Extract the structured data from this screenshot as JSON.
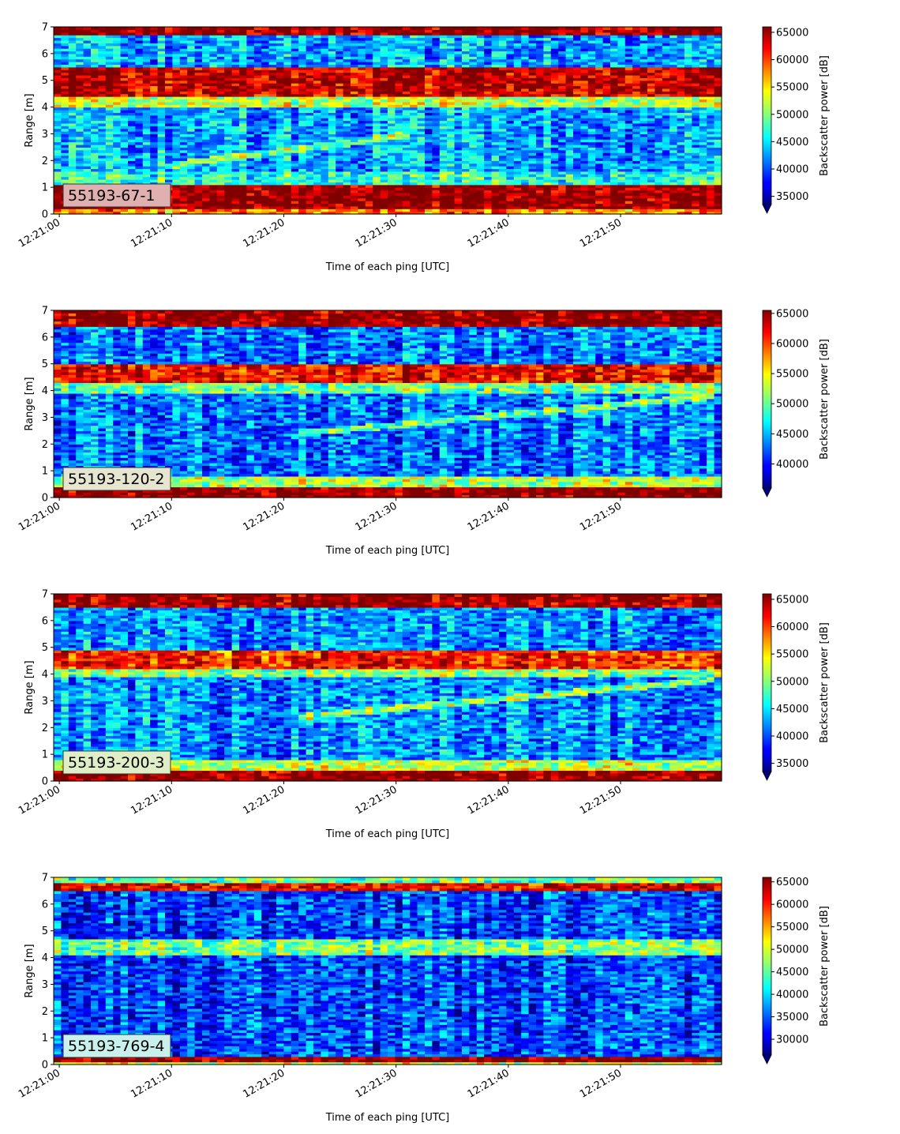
{
  "chart_data": [
    {
      "type": "heatmap",
      "label": "55193-67-1",
      "label_bg": "#e0b0b0",
      "xlabel": "Time of each ping [UTC]",
      "ylabel": "Range [m]",
      "x_ticks": [
        "12:21:00",
        "12:21:10",
        "12:21:20",
        "12:21:30",
        "12:21:40",
        "12:21:50"
      ],
      "xlim_seconds": [
        0,
        59.5
      ],
      "ylim": [
        0,
        7
      ],
      "y_ticks": [
        0,
        1,
        2,
        3,
        4,
        5,
        6,
        7
      ],
      "colormap": "jet",
      "colorbar": {
        "label": "Backscatter power [dB]",
        "range": [
          33500,
          66000
        ],
        "ticks": [
          35000,
          40000,
          45000,
          50000,
          55000,
          60000,
          65000
        ],
        "extend": "min"
      },
      "bands": [
        {
          "y_range": [
            0.0,
            0.2
          ],
          "value": 58000
        },
        {
          "y_range": [
            0.2,
            1.1
          ],
          "value": 66000
        },
        {
          "y_range": [
            1.1,
            1.6
          ],
          "value": 47000
        },
        {
          "y_range": [
            4.0,
            4.4
          ],
          "value": 52000
        },
        {
          "y_range": [
            4.4,
            5.5
          ],
          "value": 64000
        },
        {
          "y_range": [
            6.7,
            7.0
          ],
          "value": 66000
        }
      ],
      "trace": {
        "from": [
          10,
          1.8
        ],
        "to": [
          32,
          3.0
        ],
        "value": 50000
      },
      "background": 43000
    },
    {
      "type": "heatmap",
      "label": "55193-120-2",
      "label_bg": "#e6e6d0",
      "xlabel": "Time of each ping [UTC]",
      "ylabel": "Range [m]",
      "x_ticks": [
        "12:21:00",
        "12:21:10",
        "12:21:20",
        "12:21:30",
        "12:21:40",
        "12:21:50"
      ],
      "xlim_seconds": [
        0,
        59.5
      ],
      "ylim": [
        0,
        7
      ],
      "y_ticks": [
        0,
        1,
        2,
        3,
        4,
        5,
        6,
        7
      ],
      "colormap": "jet",
      "colorbar": {
        "label": "Backscatter power [dB]",
        "range": [
          36000,
          65500
        ],
        "ticks": [
          40000,
          45000,
          50000,
          55000,
          60000,
          65000
        ],
        "extend": "min"
      },
      "bands": [
        {
          "y_range": [
            0.0,
            0.4
          ],
          "value": 65500
        },
        {
          "y_range": [
            0.4,
            0.8
          ],
          "value": 52000
        },
        {
          "y_range": [
            3.9,
            4.3
          ],
          "value": 50000
        },
        {
          "y_range": [
            4.3,
            5.0
          ],
          "value": 62000
        },
        {
          "y_range": [
            6.4,
            7.0
          ],
          "value": 65000
        }
      ],
      "trace": {
        "from": [
          22,
          2.4
        ],
        "to": [
          59,
          3.8
        ],
        "value": 50000
      },
      "background": 43000
    },
    {
      "type": "heatmap",
      "label": "55193-200-3",
      "label_bg": "#e0eec8",
      "xlabel": "Time of each ping [UTC]",
      "ylabel": "Range [m]",
      "x_ticks": [
        "12:21:00",
        "12:21:10",
        "12:21:20",
        "12:21:30",
        "12:21:40",
        "12:21:50"
      ],
      "xlim_seconds": [
        0,
        59.5
      ],
      "ylim": [
        0,
        7
      ],
      "y_ticks": [
        0,
        1,
        2,
        3,
        4,
        5,
        6,
        7
      ],
      "colormap": "jet",
      "colorbar": {
        "label": "Backscatter power [dB]",
        "range": [
          33500,
          66000
        ],
        "ticks": [
          35000,
          40000,
          45000,
          50000,
          55000,
          60000,
          65000
        ],
        "extend": "min"
      },
      "bands": [
        {
          "y_range": [
            0.0,
            0.4
          ],
          "value": 66000
        },
        {
          "y_range": [
            0.4,
            0.8
          ],
          "value": 52000
        },
        {
          "y_range": [
            3.9,
            4.2
          ],
          "value": 50000
        },
        {
          "y_range": [
            4.2,
            4.9
          ],
          "value": 61000
        },
        {
          "y_range": [
            6.5,
            7.0
          ],
          "value": 65000
        }
      ],
      "trace": {
        "from": [
          22,
          2.4
        ],
        "to": [
          59,
          3.8
        ],
        "value": 50000
      },
      "background": 42000
    },
    {
      "type": "heatmap",
      "label": "55193-769-4",
      "label_bg": "#c8f0ec",
      "xlabel": "Time of each ping [UTC]",
      "ylabel": "Range [m]",
      "x_ticks": [
        "12:21:00",
        "12:21:10",
        "12:21:20",
        "12:21:30",
        "12:21:40",
        "12:21:50"
      ],
      "xlim_seconds": [
        0,
        59.5
      ],
      "ylim": [
        0,
        7
      ],
      "y_ticks": [
        0,
        1,
        2,
        3,
        4,
        5,
        6,
        7
      ],
      "colormap": "jet",
      "colorbar": {
        "label": "Backscatter power [dB]",
        "range": [
          26500,
          66000
        ],
        "ticks": [
          30000,
          35000,
          40000,
          45000,
          50000,
          55000,
          60000,
          65000
        ],
        "extend": "min"
      },
      "bands": [
        {
          "y_range": [
            0.0,
            0.1
          ],
          "value": 50000
        },
        {
          "y_range": [
            0.1,
            0.3
          ],
          "value": 66000
        },
        {
          "y_range": [
            4.1,
            4.7
          ],
          "value": 46000
        },
        {
          "y_range": [
            6.5,
            6.8
          ],
          "value": 62000
        },
        {
          "y_range": [
            6.8,
            7.0
          ],
          "value": 45000
        }
      ],
      "trace": null,
      "background": 34000
    }
  ]
}
